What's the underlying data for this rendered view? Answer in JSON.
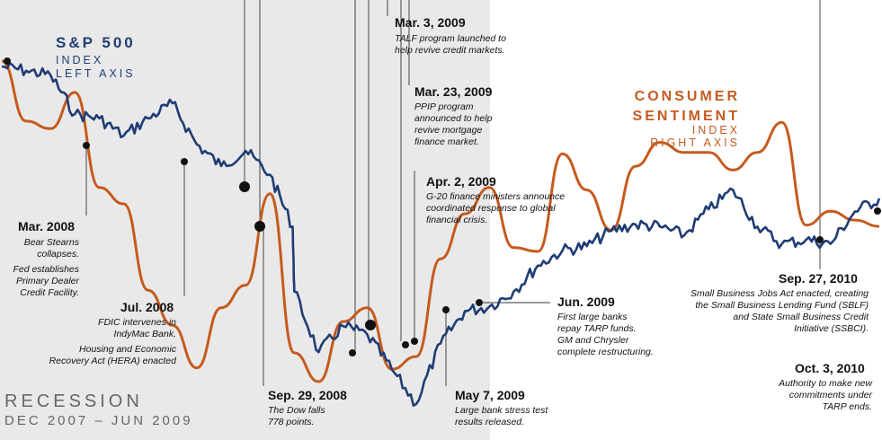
{
  "labels": {
    "sp_title": "S&P 500",
    "sp_sub1": "INDEX",
    "sp_sub2": "LEFT AXIS",
    "cs_title1": "CONSUMER",
    "cs_title2": "SENTIMENT",
    "cs_sub1": "INDEX",
    "cs_sub2": "RIGHT AXIS",
    "recession_title": "RECESSION",
    "recession_sub": "DEC 2007 – JUN 2009"
  },
  "events": [
    {
      "id": "mar2008",
      "title": "Mar. 2008",
      "lines": [
        "Bear Stearns",
        "collapses.",
        "",
        "Fed establishes",
        "Primary Dealer",
        "Credit Facility."
      ]
    },
    {
      "id": "jul2008",
      "title": "Jul. 2008",
      "lines": [
        "FDIC intervenes in",
        "IndyMac Bank.",
        "",
        "Housing and Economic",
        "Recovery Act (HERA) enacted"
      ]
    },
    {
      "id": "sep2008",
      "title": "Sep. 29, 2008",
      "lines": [
        "The Dow falls",
        "778 points."
      ]
    },
    {
      "id": "mar3_2009",
      "title": "Mar. 3, 2009",
      "lines": [
        "TALF program launched to",
        "help revive credit markets."
      ]
    },
    {
      "id": "mar23_2009",
      "title": "Mar. 23, 2009",
      "lines": [
        "PPIP program",
        "announced to help",
        "revive mortgage",
        "finance market."
      ]
    },
    {
      "id": "apr2009",
      "title": "Apr. 2, 2009",
      "lines": [
        "G-20 finance ministers announce",
        "coordinated response to global",
        "financial crisis."
      ]
    },
    {
      "id": "may2009",
      "title": "May 7, 2009",
      "lines": [
        "Large bank stress test",
        "results released."
      ]
    },
    {
      "id": "jun2009",
      "title": "Jun. 2009",
      "lines": [
        "First large banks",
        "repay TARP funds.",
        "GM and Chrysler",
        "complete restructuring."
      ]
    },
    {
      "id": "sep2010",
      "title": "Sep. 27, 2010",
      "lines": [
        "Small Business Jobs Act enacted, creating",
        "the Small Business Lending Fund (SBLF)",
        "and State Small Business Credit",
        "Initiative (SSBCI)."
      ]
    },
    {
      "id": "oct2010",
      "title": "Oct. 3, 2010",
      "lines": [
        "Authority to make new",
        "commitments under",
        "TARP ends."
      ]
    }
  ],
  "colors": {
    "sp500": "#1f3d74",
    "sentiment": "#c65a1e",
    "recession_band": "#e9e9e9",
    "marker": "#111111"
  },
  "chart_data": {
    "type": "line",
    "title": "",
    "x_range": [
      "2007-10",
      "2010-10"
    ],
    "recession": {
      "start": "2007-12",
      "end": "2009-06"
    },
    "series": [
      {
        "name": "S&P 500",
        "axis": "left",
        "points": [
          [
            "2007-10",
            1480
          ],
          [
            "2007-11",
            1470
          ],
          [
            "2007-12",
            1460
          ],
          [
            "2008-01",
            1370
          ],
          [
            "2008-02",
            1360
          ],
          [
            "2008-03",
            1320
          ],
          [
            "2008-04",
            1360
          ],
          [
            "2008-05",
            1395
          ],
          [
            "2008-06",
            1300
          ],
          [
            "2008-07",
            1250
          ],
          [
            "2008-08",
            1285
          ],
          [
            "2008-09",
            1230
          ],
          [
            "2008-09-29",
            1110
          ],
          [
            "2008-10",
            960
          ],
          [
            "2008-11",
            820
          ],
          [
            "2008-12",
            880
          ],
          [
            "2009-01",
            860
          ],
          [
            "2009-02",
            780
          ],
          [
            "2009-03",
            700
          ],
          [
            "2009-04",
            840
          ],
          [
            "2009-05",
            915
          ],
          [
            "2009-06",
            925
          ],
          [
            "2009-07",
            960
          ],
          [
            "2009-08",
            1020
          ],
          [
            "2009-09",
            1055
          ],
          [
            "2009-10",
            1065
          ],
          [
            "2009-11",
            1100
          ],
          [
            "2009-12",
            1115
          ],
          [
            "2010-01",
            1110
          ],
          [
            "2010-02",
            1090
          ],
          [
            "2010-03",
            1150
          ],
          [
            "2010-04",
            1195
          ],
          [
            "2010-05",
            1110
          ],
          [
            "2010-06",
            1070
          ],
          [
            "2010-07",
            1080
          ],
          [
            "2010-08",
            1070
          ],
          [
            "2010-09",
            1145
          ],
          [
            "2010-10",
            1175
          ]
        ]
      },
      {
        "name": "Consumer Sentiment",
        "axis": "right",
        "points": [
          [
            "2007-10",
            80.9
          ],
          [
            "2007-11",
            76.1
          ],
          [
            "2007-12",
            75.5
          ],
          [
            "2008-01",
            78.4
          ],
          [
            "2008-02",
            70.8
          ],
          [
            "2008-03",
            69.5
          ],
          [
            "2008-04",
            62.6
          ],
          [
            "2008-05",
            59.8
          ],
          [
            "2008-06",
            56.4
          ],
          [
            "2008-07",
            61.2
          ],
          [
            "2008-08",
            63.0
          ],
          [
            "2008-09",
            70.3
          ],
          [
            "2008-10",
            57.6
          ],
          [
            "2008-11",
            55.3
          ],
          [
            "2008-12",
            60.1
          ],
          [
            "2009-01",
            61.2
          ],
          [
            "2009-02",
            56.3
          ],
          [
            "2009-03",
            57.3
          ],
          [
            "2009-04",
            65.1
          ],
          [
            "2009-05",
            68.7
          ],
          [
            "2009-06",
            70.8
          ],
          [
            "2009-07",
            66.0
          ],
          [
            "2009-08",
            65.7
          ],
          [
            "2009-09",
            73.5
          ],
          [
            "2009-10",
            70.6
          ],
          [
            "2009-11",
            67.4
          ],
          [
            "2009-12",
            72.5
          ],
          [
            "2010-01",
            74.4
          ],
          [
            "2010-02",
            73.6
          ],
          [
            "2010-03",
            73.6
          ],
          [
            "2010-04",
            72.2
          ],
          [
            "2010-05",
            73.6
          ],
          [
            "2010-06",
            76.0
          ],
          [
            "2010-07",
            67.8
          ],
          [
            "2010-08",
            68.9
          ],
          [
            "2010-09",
            68.2
          ],
          [
            "2010-10",
            67.7
          ]
        ]
      }
    ]
  }
}
